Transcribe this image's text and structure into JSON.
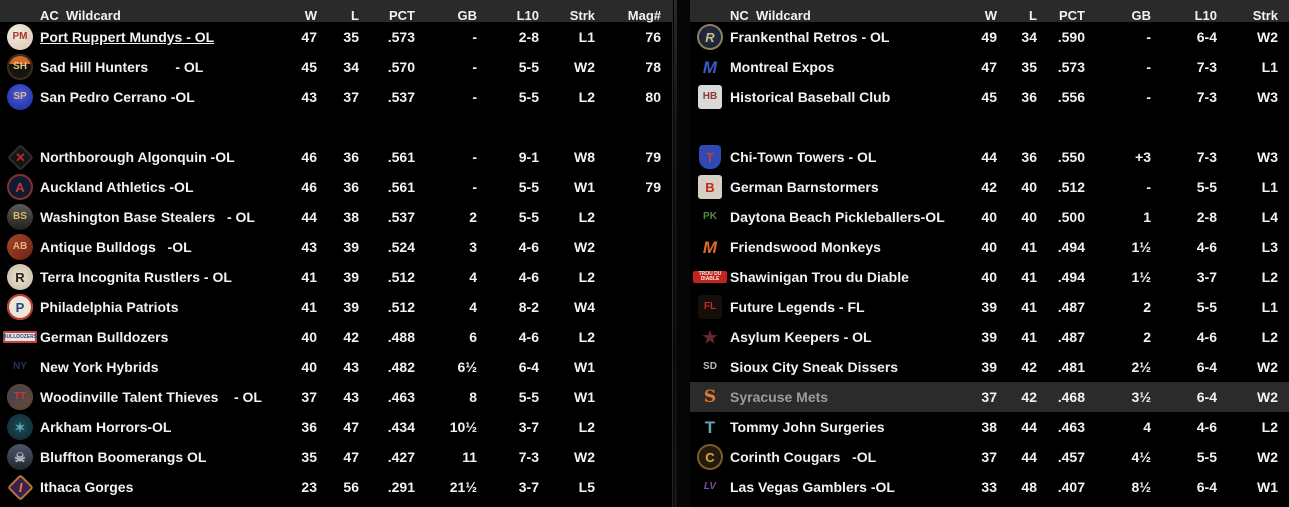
{
  "colors": {
    "page_bg": "#000000",
    "header_bg": "#2a2a2a",
    "row_text": "#f2f2f2",
    "highlight_row_bg": "#2b2b2b",
    "highlight_name_text": "#9c9c9c"
  },
  "left_table": {
    "title": "AC  Wildcard",
    "columns": {
      "w": "W",
      "l": "L",
      "pct": "PCT",
      "gb": "GB",
      "l10": "L10",
      "strk": "Strk",
      "mag": "Mag#"
    },
    "rows": [
      {
        "team": "Port Ruppert Mundys - OL",
        "underline": true,
        "w": "47",
        "l": "35",
        "pct": ".573",
        "gb": "-",
        "l10": "2-8",
        "strk": "L1",
        "mag": "76",
        "logo": {
          "shape": "circle",
          "bg": "radial-gradient(circle at 35% 35%, #f5ece2, #d6c4b2)",
          "fg": "#a8352a",
          "label": "PM"
        }
      },
      {
        "team": "Sad Hill Hunters       - OL",
        "w": "45",
        "l": "34",
        "pct": ".570",
        "gb": "-",
        "l10": "5-5",
        "strk": "W2",
        "mag": "78",
        "logo": {
          "shape": "circle",
          "bg": "linear-gradient(#d06a28 0 38%, #17130f 38%)",
          "fg": "#e8c87a",
          "label": "SH",
          "border": "#3a2d20"
        }
      },
      {
        "team": "San Pedro Cerrano -OL",
        "w": "43",
        "l": "37",
        "pct": ".537",
        "gb": "-",
        "l10": "5-5",
        "strk": "L2",
        "mag": "80",
        "logo": {
          "shape": "circle",
          "bg": "radial-gradient(circle at 50% 40%, #4a5cd8, #1b2a9e)",
          "fg": "#e8b48c",
          "label": "SP"
        }
      },
      {
        "blank": true
      },
      {
        "team": "Northborough Algonquin -OL",
        "w": "46",
        "l": "36",
        "pct": ".561",
        "gb": "-",
        "l10": "9-1",
        "strk": "W8",
        "mag": "79",
        "logo": {
          "shape": "diamond",
          "bg": "#141414",
          "fg": "#b03028",
          "label": "✕",
          "border": "#2e2e2e"
        }
      },
      {
        "team": "Auckland Athletics -OL",
        "w": "46",
        "l": "36",
        "pct": ".561",
        "gb": "-",
        "l10": "5-5",
        "strk": "W1",
        "mag": "79",
        "logo": {
          "shape": "circle",
          "bg": "#101b33",
          "fg": "#c23b33",
          "label": "A",
          "border": "#8a2f28"
        }
      },
      {
        "team": "Washington Base Stealers   - OL",
        "w": "44",
        "l": "38",
        "pct": ".537",
        "gb": "2",
        "l10": "5-5",
        "strk": "L2",
        "mag": "",
        "logo": {
          "shape": "circle",
          "bg": "linear-gradient(#5a5a58, #23201c)",
          "fg": "#d8b868",
          "label": "BS"
        }
      },
      {
        "team": "Antique Bulldogs   -OL",
        "w": "43",
        "l": "39",
        "pct": ".524",
        "gb": "3",
        "l10": "4-6",
        "strk": "W2",
        "mag": "",
        "logo": {
          "shape": "circle",
          "bg": "linear-gradient(135deg, #a8442a, #6b2415)",
          "fg": "#e2b27c",
          "label": "AB"
        }
      },
      {
        "team": "Terra Incognita Rustlers - OL",
        "w": "41",
        "l": "39",
        "pct": ".512",
        "gb": "4",
        "l10": "4-6",
        "strk": "L2",
        "mag": "",
        "logo": {
          "shape": "circle",
          "bg": "radial-gradient(circle, #ece4d2, #c4b8a0)",
          "fg": "#2b2118",
          "label": "R"
        }
      },
      {
        "team": "Philadelphia Patriots",
        "w": "41",
        "l": "39",
        "pct": ".512",
        "gb": "4",
        "l10": "8-2",
        "strk": "W4",
        "mag": "",
        "logo": {
          "shape": "circle",
          "bg": "#ece6da",
          "fg": "#27407e",
          "label": "P",
          "border": "#bf3a2e"
        }
      },
      {
        "team": "German Bulldozers",
        "w": "40",
        "l": "42",
        "pct": ".488",
        "gb": "6",
        "l10": "4-6",
        "strk": "L2",
        "mag": "",
        "logo": {
          "shape": "bar",
          "bg": "#e8e4dc",
          "fg": "#32458c",
          "label": "BULLDOZERS",
          "border": "#c24438"
        }
      },
      {
        "team": "New York Hybrids",
        "w": "40",
        "l": "43",
        "pct": ".482",
        "gb": "6½",
        "l10": "6-4",
        "strk": "W1",
        "mag": "",
        "logo": {
          "shape": "none",
          "bg": "transparent",
          "fg": "#27335c",
          "label": "NY"
        }
      },
      {
        "team": "Woodinville Talent Thieves    - OL",
        "w": "37",
        "l": "43",
        "pct": ".463",
        "gb": "8",
        "l10": "5-5",
        "strk": "W1",
        "mag": "",
        "logo": {
          "shape": "circle",
          "bg": "linear-gradient(135deg, #3c3f63, #6b4a33)",
          "fg": "#c8362e",
          "label": "TT",
          "border": "#55482f"
        }
      },
      {
        "team": "Arkham Horrors-OL",
        "w": "36",
        "l": "47",
        "pct": ".434",
        "gb": "10½",
        "l10": "3-7",
        "strk": "L2",
        "mag": "",
        "logo": {
          "shape": "circle",
          "bg": "radial-gradient(circle, #1d4a56, #0e2830)",
          "fg": "#57aabb",
          "label": "✶"
        }
      },
      {
        "team": "Bluffton Boomerangs OL",
        "w": "35",
        "l": "47",
        "pct": ".427",
        "gb": "11",
        "l10": "7-3",
        "strk": "W2",
        "mag": "",
        "logo": {
          "shape": "circle",
          "bg": "linear-gradient(#4c566a, #23262e)",
          "fg": "#aeb6c2",
          "label": "☠"
        }
      },
      {
        "team": "Ithaca Gorges",
        "w": "23",
        "l": "56",
        "pct": ".291",
        "gb": "21½",
        "l10": "3-7",
        "strk": "L5",
        "mag": "",
        "logo": {
          "shape": "diamond",
          "bg": "#3c1f52",
          "fg": "#e0862f",
          "label": "I",
          "border": "#b8782a",
          "italic": true
        }
      }
    ]
  },
  "right_table": {
    "title": "NC  Wildcard",
    "columns": {
      "w": "W",
      "l": "L",
      "pct": "PCT",
      "gb": "GB",
      "l10": "L10",
      "strk": "Strk"
    },
    "rows": [
      {
        "team": "Frankenthal Retros - OL",
        "w": "49",
        "l": "34",
        "pct": ".590",
        "gb": "-",
        "l10": "6-4",
        "strk": "W2",
        "logo": {
          "shape": "circle",
          "bg": "radial-gradient(circle, #2a3348, #121826)",
          "fg": "#cdbd8a",
          "label": "R",
          "border": "#8d815a",
          "italic": true
        }
      },
      {
        "team": "Montreal Expos",
        "w": "47",
        "l": "35",
        "pct": ".573",
        "gb": "-",
        "l10": "7-3",
        "strk": "L1",
        "logo": {
          "shape": "none",
          "bg": "transparent",
          "fg": "#3b5cc8",
          "label": "M",
          "italic": true
        }
      },
      {
        "team": "Historical Baseball Club",
        "w": "45",
        "l": "36",
        "pct": ".556",
        "gb": "-",
        "l10": "7-3",
        "strk": "W3",
        "logo": {
          "shape": "square",
          "bg": "#d9d9d9",
          "fg": "#8c3a30",
          "label": "HB"
        }
      },
      {
        "blank": true
      },
      {
        "team": "Chi-Town Towers - OL",
        "w": "44",
        "l": "36",
        "pct": ".550",
        "gb": "+3",
        "l10": "7-3",
        "strk": "W3",
        "logo": {
          "shape": "shield",
          "bg": "#2f49b5",
          "fg": "#cf3b30",
          "label": "T"
        }
      },
      {
        "team": "German Barnstormers",
        "w": "42",
        "l": "40",
        "pct": ".512",
        "gb": "-",
        "l10": "5-5",
        "strk": "L1",
        "logo": {
          "shape": "square",
          "bg": "#d8cfc4",
          "fg": "#c0271e",
          "label": "B"
        }
      },
      {
        "team": "Daytona Beach Pickleballers-OL",
        "w": "40",
        "l": "40",
        "pct": ".500",
        "gb": "1",
        "l10": "2-8",
        "strk": "L4",
        "logo": {
          "shape": "none",
          "bg": "transparent",
          "fg": "#4d9040",
          "label": "PK"
        }
      },
      {
        "team": "Friendswood Monkeys",
        "w": "40",
        "l": "41",
        "pct": ".494",
        "gb": "1½",
        "l10": "4-6",
        "strk": "L3",
        "logo": {
          "shape": "none",
          "bg": "transparent",
          "fg": "#e06a28",
          "label": "M",
          "italic": true
        }
      },
      {
        "team": "Shawinigan Trou du Diable",
        "w": "40",
        "l": "41",
        "pct": ".494",
        "gb": "1½",
        "l10": "3-7",
        "strk": "L2",
        "logo": {
          "shape": "bar",
          "bg": "#c02420",
          "fg": "#f2e8e0",
          "label": "TROU DU DIABLE"
        }
      },
      {
        "team": "Future Legends - FL",
        "w": "39",
        "l": "41",
        "pct": ".487",
        "gb": "2",
        "l10": "5-5",
        "strk": "L1",
        "logo": {
          "shape": "square",
          "bg": "#140d0a",
          "fg": "#c22d22",
          "label": "FL"
        }
      },
      {
        "team": "Asylum Keepers - OL",
        "w": "39",
        "l": "41",
        "pct": ".487",
        "gb": "2",
        "l10": "4-6",
        "strk": "L2",
        "logo": {
          "shape": "none",
          "bg": "transparent",
          "fg": "#6e2430",
          "label": "★"
        }
      },
      {
        "team": "Sioux City Sneak Dissers",
        "w": "39",
        "l": "42",
        "pct": ".481",
        "gb": "2½",
        "l10": "6-4",
        "strk": "W2",
        "logo": {
          "shape": "none",
          "bg": "transparent",
          "fg": "#b9b9b9",
          "label": "SD"
        }
      },
      {
        "team": "Syracuse Mets",
        "highlight": true,
        "w": "37",
        "l": "42",
        "pct": ".468",
        "gb": "3½",
        "l10": "6-4",
        "strk": "W2",
        "logo": {
          "shape": "none",
          "bg": "transparent",
          "fg": "#e07a2e",
          "label": "S",
          "serif": true
        }
      },
      {
        "team": "Tommy John Surgeries",
        "w": "38",
        "l": "44",
        "pct": ".463",
        "gb": "4",
        "l10": "4-6",
        "strk": "L2",
        "logo": {
          "shape": "none",
          "bg": "transparent",
          "fg": "#5fa8b4",
          "label": "T"
        }
      },
      {
        "team": "Corinth Cougars   -OL",
        "w": "37",
        "l": "44",
        "pct": ".457",
        "gb": "4½",
        "l10": "5-5",
        "strk": "W2",
        "logo": {
          "shape": "circle",
          "bg": "radial-gradient(circle, #2e2013, #17100a)",
          "fg": "#d9a73a",
          "label": "C",
          "border": "#7a5c28"
        }
      },
      {
        "team": "Las Vegas Gamblers -OL",
        "w": "33",
        "l": "48",
        "pct": ".407",
        "gb": "8½",
        "l10": "6-4",
        "strk": "W1",
        "logo": {
          "shape": "none",
          "bg": "transparent",
          "fg": "#7b4f9e",
          "label": "LV",
          "italic": true
        }
      }
    ]
  }
}
